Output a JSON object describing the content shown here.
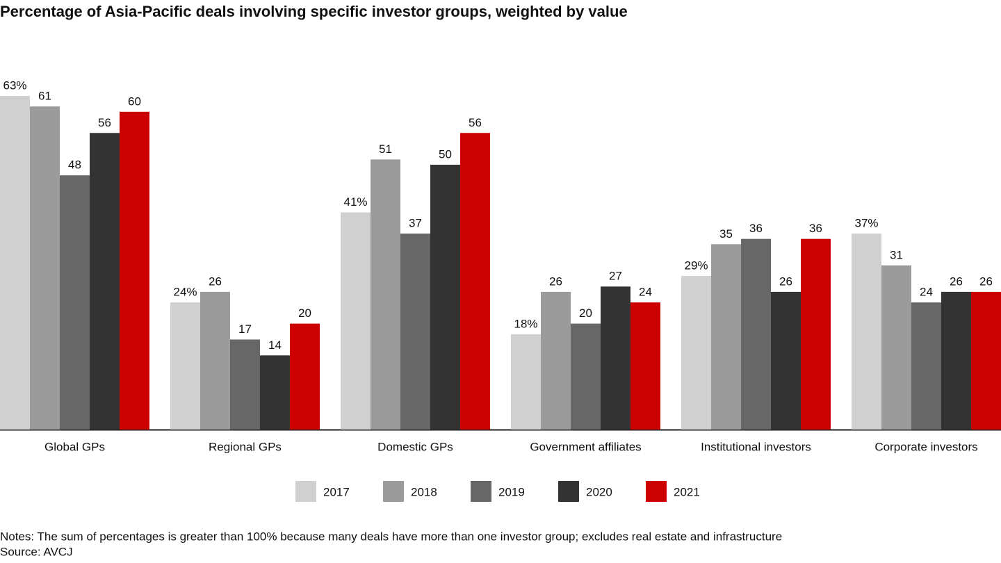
{
  "chart_data": {
    "type": "bar",
    "title": "Percentage of Asia-Pacific deals involving specific investor groups, weighted by value",
    "categories": [
      "Global GPs",
      "Regional GPs",
      "Domestic GPs",
      "Government affiliates",
      "Institutional investors",
      "Corporate investors"
    ],
    "series": [
      {
        "name": "2017",
        "color": "#d0d0d0",
        "values": [
          63,
          24,
          41,
          18,
          29,
          37
        ],
        "value_labels": [
          "63%",
          "24%",
          "41%",
          "18%",
          "29%",
          "37%"
        ]
      },
      {
        "name": "2018",
        "color": "#9b9b9b",
        "values": [
          61,
          26,
          51,
          26,
          35,
          31
        ]
      },
      {
        "name": "2019",
        "color": "#676767",
        "values": [
          48,
          17,
          37,
          20,
          36,
          24
        ]
      },
      {
        "name": "2020",
        "color": "#333333",
        "values": [
          56,
          14,
          50,
          27,
          26,
          26
        ]
      },
      {
        "name": "2021",
        "color": "#cc0000",
        "values": [
          60,
          20,
          56,
          24,
          36,
          26
        ]
      }
    ],
    "notes": "Notes: The sum of percentages is greater than 100% because many deals have more than one investor group; excludes real estate and infrastructure",
    "source": "Source: AVCJ"
  }
}
